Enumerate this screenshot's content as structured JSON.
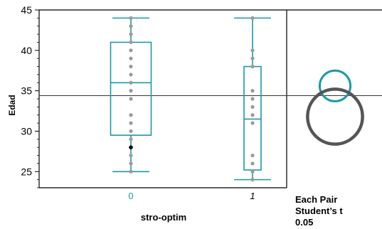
{
  "chart_data": {
    "type": "box",
    "ylabel": "Edad",
    "xlabel": "stro-optim",
    "ylim": [
      23,
      45
    ],
    "yticks": [
      25,
      30,
      35,
      40,
      45
    ],
    "grand_mean": 34.4,
    "categories": [
      {
        "label": "0",
        "stats": {
          "min": 25,
          "q1": 29.5,
          "median": 36,
          "q3": 41,
          "max": 44
        },
        "points": [
          44,
          43,
          42,
          41,
          40,
          39,
          38,
          37,
          36,
          35,
          34,
          32,
          31,
          30,
          29,
          28,
          27,
          26,
          25
        ],
        "highlight_point": 28
      },
      {
        "label": "1",
        "stats": {
          "min": 24,
          "q1": 25.2,
          "median": 31.5,
          "q3": 38,
          "max": 44
        },
        "points": [
          44,
          40,
          39,
          38,
          35,
          34,
          33,
          32,
          31,
          27,
          26,
          25,
          24
        ],
        "highlight_point": null
      }
    ],
    "comparison": {
      "title_lines": [
        "Each Pair",
        "Student’s t",
        "0.05"
      ],
      "circles": [
        {
          "group": "0",
          "center": 35.6,
          "radius": 1.9,
          "color": "#1a9aa8"
        },
        {
          "group": "1",
          "center": 31.8,
          "radius": 3.4,
          "color": "#555555"
        }
      ]
    },
    "colors": {
      "box": "#1a9aa8",
      "points": "#9a9a9a",
      "highlight": "#000000",
      "axis": "#000000",
      "label0": "#1a9aa8",
      "label1": "#000000"
    }
  }
}
